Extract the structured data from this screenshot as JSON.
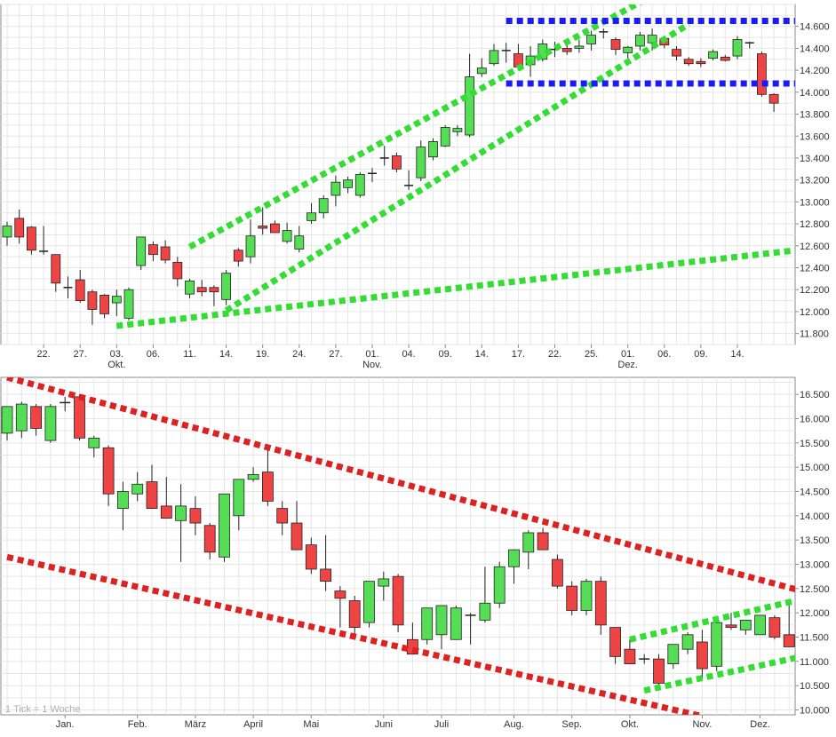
{
  "chart_data": [
    {
      "type": "candlestick",
      "timeframe": "daily",
      "ylim": [
        11700,
        14800
      ],
      "y_ticks": [
        11800,
        12000,
        12200,
        12400,
        12600,
        12800,
        13000,
        13200,
        13400,
        13600,
        13800,
        14000,
        14200,
        14400,
        14600
      ],
      "y_tick_labels": [
        "11.800",
        "12.000",
        "12.200",
        "12.400",
        "12.600",
        "12.800",
        "13.000",
        "13.200",
        "13.400",
        "13.600",
        "13.800",
        "14.000",
        "14.200",
        "14.400",
        "14.600"
      ],
      "x_tick_labels": [
        {
          "index": 3,
          "label": "22."
        },
        {
          "index": 6,
          "label": "27."
        },
        {
          "index": 9,
          "label": "03.",
          "sub": "Okt."
        },
        {
          "index": 12,
          "label": "06."
        },
        {
          "index": 15,
          "label": "11."
        },
        {
          "index": 18,
          "label": "14."
        },
        {
          "index": 21,
          "label": "19."
        },
        {
          "index": 24,
          "label": "24."
        },
        {
          "index": 27,
          "label": "27."
        },
        {
          "index": 30,
          "label": "01.",
          "sub": "Nov."
        },
        {
          "index": 33,
          "label": "04."
        },
        {
          "index": 36,
          "label": "09."
        },
        {
          "index": 39,
          "label": "14."
        },
        {
          "index": 42,
          "label": "17."
        },
        {
          "index": 45,
          "label": "22."
        },
        {
          "index": 48,
          "label": "25."
        },
        {
          "index": 51,
          "label": "01.",
          "sub": "Dez."
        },
        {
          "index": 54,
          "label": "06."
        },
        {
          "index": 57,
          "label": "09."
        },
        {
          "index": 60,
          "label": "14."
        }
      ],
      "candles": [
        {
          "o": 12680,
          "h": 12820,
          "l": 12600,
          "c": 12780
        },
        {
          "o": 12850,
          "h": 12930,
          "l": 12620,
          "c": 12680
        },
        {
          "o": 12770,
          "h": 12780,
          "l": 12520,
          "c": 12560
        },
        {
          "o": 12550,
          "h": 12780,
          "l": 12520,
          "c": 12540
        },
        {
          "o": 12520,
          "h": 12520,
          "l": 12180,
          "c": 12260
        },
        {
          "o": 12220,
          "h": 12320,
          "l": 12120,
          "c": 12220
        },
        {
          "o": 12290,
          "h": 12380,
          "l": 12080,
          "c": 12100
        },
        {
          "o": 12180,
          "h": 12200,
          "l": 11880,
          "c": 12020
        },
        {
          "o": 12150,
          "h": 12160,
          "l": 11940,
          "c": 11980
        },
        {
          "o": 12080,
          "h": 12200,
          "l": 11960,
          "c": 12140
        },
        {
          "o": 11940,
          "h": 12220,
          "l": 11920,
          "c": 12200
        },
        {
          "o": 12420,
          "h": 12680,
          "l": 12380,
          "c": 12680
        },
        {
          "o": 12610,
          "h": 12640,
          "l": 12460,
          "c": 12520
        },
        {
          "o": 12590,
          "h": 12650,
          "l": 12440,
          "c": 12470
        },
        {
          "o": 12450,
          "h": 12500,
          "l": 12230,
          "c": 12300
        },
        {
          "o": 12160,
          "h": 12300,
          "l": 12120,
          "c": 12280
        },
        {
          "o": 12220,
          "h": 12290,
          "l": 12140,
          "c": 12180
        },
        {
          "o": 12220,
          "h": 12240,
          "l": 12050,
          "c": 12180
        },
        {
          "o": 12110,
          "h": 12380,
          "l": 12060,
          "c": 12350
        },
        {
          "o": 12560,
          "h": 12580,
          "l": 12410,
          "c": 12460
        },
        {
          "o": 12500,
          "h": 12840,
          "l": 12440,
          "c": 12690
        },
        {
          "o": 12780,
          "h": 12950,
          "l": 12700,
          "c": 12760
        },
        {
          "o": 12800,
          "h": 12830,
          "l": 12720,
          "c": 12720
        },
        {
          "o": 12640,
          "h": 12810,
          "l": 12620,
          "c": 12740
        },
        {
          "o": 12570,
          "h": 12780,
          "l": 12540,
          "c": 12690
        },
        {
          "o": 12830,
          "h": 12990,
          "l": 12800,
          "c": 12900
        },
        {
          "o": 12900,
          "h": 13060,
          "l": 12850,
          "c": 13030
        },
        {
          "o": 13060,
          "h": 13240,
          "l": 12960,
          "c": 13180
        },
        {
          "o": 13130,
          "h": 13230,
          "l": 13080,
          "c": 13200
        },
        {
          "o": 13060,
          "h": 13270,
          "l": 13040,
          "c": 13250
        },
        {
          "o": 13260,
          "h": 13310,
          "l": 13180,
          "c": 13260
        },
        {
          "o": 13400,
          "h": 13510,
          "l": 13330,
          "c": 13390
        },
        {
          "o": 13420,
          "h": 13450,
          "l": 13270,
          "c": 13300
        },
        {
          "o": 13150,
          "h": 13290,
          "l": 13110,
          "c": 13140
        },
        {
          "o": 13220,
          "h": 13560,
          "l": 13190,
          "c": 13500
        },
        {
          "o": 13410,
          "h": 13580,
          "l": 13380,
          "c": 13550
        },
        {
          "o": 13510,
          "h": 13700,
          "l": 13500,
          "c": 13680
        },
        {
          "o": 13640,
          "h": 13700,
          "l": 13600,
          "c": 13670
        },
        {
          "o": 13610,
          "h": 14350,
          "l": 13590,
          "c": 14140
        },
        {
          "o": 14170,
          "h": 14310,
          "l": 14140,
          "c": 14220
        },
        {
          "o": 14260,
          "h": 14440,
          "l": 14240,
          "c": 14380
        },
        {
          "o": 14380,
          "h": 14450,
          "l": 14270,
          "c": 14380
        },
        {
          "o": 14350,
          "h": 14440,
          "l": 14200,
          "c": 14230
        },
        {
          "o": 14250,
          "h": 14420,
          "l": 14140,
          "c": 14330
        },
        {
          "o": 14300,
          "h": 14480,
          "l": 14280,
          "c": 14440
        },
        {
          "o": 14380,
          "h": 14460,
          "l": 14320,
          "c": 14390
        },
        {
          "o": 14400,
          "h": 14440,
          "l": 14340,
          "c": 14370
        },
        {
          "o": 14400,
          "h": 14480,
          "l": 14360,
          "c": 14420
        },
        {
          "o": 14440,
          "h": 14560,
          "l": 14380,
          "c": 14520
        },
        {
          "o": 14540,
          "h": 14580,
          "l": 14490,
          "c": 14550
        },
        {
          "o": 14480,
          "h": 14500,
          "l": 14340,
          "c": 14390
        },
        {
          "o": 14360,
          "h": 14420,
          "l": 14310,
          "c": 14410
        },
        {
          "o": 14420,
          "h": 14550,
          "l": 14380,
          "c": 14520
        },
        {
          "o": 14450,
          "h": 14580,
          "l": 14380,
          "c": 14520
        },
        {
          "o": 14490,
          "h": 14510,
          "l": 14400,
          "c": 14430
        },
        {
          "o": 14390,
          "h": 14420,
          "l": 14290,
          "c": 14330
        },
        {
          "o": 14300,
          "h": 14320,
          "l": 14240,
          "c": 14260
        },
        {
          "o": 14280,
          "h": 14310,
          "l": 14230,
          "c": 14260
        },
        {
          "o": 14310,
          "h": 14390,
          "l": 14290,
          "c": 14370
        },
        {
          "o": 14320,
          "h": 14340,
          "l": 14280,
          "c": 14290
        },
        {
          "o": 14330,
          "h": 14510,
          "l": 14300,
          "c": 14480
        },
        {
          "o": 14440,
          "h": 14460,
          "l": 14400,
          "c": 14450
        },
        {
          "o": 14350,
          "h": 14370,
          "l": 13960,
          "c": 13980
        },
        {
          "o": 13980,
          "h": 13990,
          "l": 13820,
          "c": 13900
        }
      ],
      "trendlines": [
        {
          "color": "#33dd33",
          "from": {
            "index": 9,
            "y": 11870
          },
          "to": {
            "index": 73,
            "y": 12660
          }
        },
        {
          "color": "#33dd33",
          "from": {
            "index": 18,
            "y": 12010
          },
          "to": {
            "index": 56,
            "y": 14620
          }
        },
        {
          "color": "#33dd33",
          "from": {
            "index": 15,
            "y": 12590
          },
          "to": {
            "index": 53,
            "y": 14880
          }
        },
        {
          "color": "#1a1aff",
          "from": {
            "index": 41,
            "y": 14650
          },
          "to": {
            "index": 71,
            "y": 14650
          }
        },
        {
          "color": "#1a1aff",
          "from": {
            "index": 41,
            "y": 14080
          },
          "to": {
            "index": 71,
            "y": 14080
          }
        }
      ]
    },
    {
      "type": "candlestick",
      "timeframe": "weekly",
      "note": "1 Tick = 1 Woche",
      "ylim": [
        9900,
        16850
      ],
      "y_ticks": [
        10000,
        10500,
        11000,
        11500,
        12000,
        12500,
        13000,
        13500,
        14000,
        14500,
        15000,
        15500,
        16000,
        16500
      ],
      "y_tick_labels": [
        "10.000",
        "10.500",
        "11.000",
        "11.500",
        "12.000",
        "12.500",
        "13.000",
        "13.500",
        "14.000",
        "14.500",
        "15.000",
        "15.500",
        "16.000",
        "16.500"
      ],
      "x_tick_labels": [
        {
          "index": 4,
          "label": "Jan."
        },
        {
          "index": 9,
          "label": "Feb."
        },
        {
          "index": 13,
          "label": "März"
        },
        {
          "index": 17,
          "label": "April"
        },
        {
          "index": 21,
          "label": "Mai"
        },
        {
          "index": 26,
          "label": "Juni"
        },
        {
          "index": 30,
          "label": "Juli"
        },
        {
          "index": 35,
          "label": "Aug."
        },
        {
          "index": 39,
          "label": "Sep."
        },
        {
          "index": 43,
          "label": "Okt."
        },
        {
          "index": 48,
          "label": "Nov."
        },
        {
          "index": 52,
          "label": "Dez."
        }
      ],
      "candles": [
        {
          "o": 15700,
          "h": 16250,
          "l": 15550,
          "c": 16250
        },
        {
          "o": 15750,
          "h": 16350,
          "l": 15600,
          "c": 16300
        },
        {
          "o": 16250,
          "h": 16300,
          "l": 15650,
          "c": 15800
        },
        {
          "o": 15550,
          "h": 16300,
          "l": 15500,
          "c": 16250
        },
        {
          "o": 16330,
          "h": 16450,
          "l": 16150,
          "c": 16330
        },
        {
          "o": 16450,
          "h": 16500,
          "l": 15550,
          "c": 15600
        },
        {
          "o": 15400,
          "h": 15650,
          "l": 15200,
          "c": 15600
        },
        {
          "o": 15400,
          "h": 15450,
          "l": 14200,
          "c": 14450
        },
        {
          "o": 14150,
          "h": 14700,
          "l": 13700,
          "c": 14500
        },
        {
          "o": 14450,
          "h": 14900,
          "l": 14300,
          "c": 14650
        },
        {
          "o": 14700,
          "h": 15050,
          "l": 14200,
          "c": 14150
        },
        {
          "o": 14200,
          "h": 14800,
          "l": 13950,
          "c": 13950
        },
        {
          "o": 13900,
          "h": 14650,
          "l": 13050,
          "c": 14200
        },
        {
          "o": 14150,
          "h": 14400,
          "l": 13600,
          "c": 13850
        },
        {
          "o": 13800,
          "h": 13850,
          "l": 13100,
          "c": 13250
        },
        {
          "o": 13150,
          "h": 14450,
          "l": 13050,
          "c": 14450
        },
        {
          "o": 14000,
          "h": 14750,
          "l": 13700,
          "c": 14750
        },
        {
          "o": 14750,
          "h": 15000,
          "l": 14700,
          "c": 14850
        },
        {
          "o": 14900,
          "h": 15350,
          "l": 14200,
          "c": 14300
        },
        {
          "o": 14150,
          "h": 14300,
          "l": 13600,
          "c": 13850
        },
        {
          "o": 13850,
          "h": 14300,
          "l": 13300,
          "c": 13300
        },
        {
          "o": 13400,
          "h": 13550,
          "l": 12800,
          "c": 12900
        },
        {
          "o": 12900,
          "h": 13600,
          "l": 12450,
          "c": 12650
        },
        {
          "o": 12450,
          "h": 12550,
          "l": 11700,
          "c": 12300
        },
        {
          "o": 12250,
          "h": 12350,
          "l": 11450,
          "c": 11700
        },
        {
          "o": 11800,
          "h": 12650,
          "l": 11700,
          "c": 12650
        },
        {
          "o": 12550,
          "h": 12850,
          "l": 12250,
          "c": 12700
        },
        {
          "o": 12750,
          "h": 12800,
          "l": 11600,
          "c": 11750
        },
        {
          "o": 11450,
          "h": 11800,
          "l": 11150,
          "c": 11150
        },
        {
          "o": 11450,
          "h": 12100,
          "l": 11350,
          "c": 12100
        },
        {
          "o": 11550,
          "h": 12150,
          "l": 11250,
          "c": 12150
        },
        {
          "o": 11450,
          "h": 12150,
          "l": 11450,
          "c": 12100
        },
        {
          "o": 11950,
          "h": 12000,
          "l": 11350,
          "c": 11950
        },
        {
          "o": 11850,
          "h": 12950,
          "l": 11800,
          "c": 12200
        },
        {
          "o": 12200,
          "h": 13050,
          "l": 12100,
          "c": 12950
        },
        {
          "o": 12950,
          "h": 13300,
          "l": 12600,
          "c": 13300
        },
        {
          "o": 13250,
          "h": 13700,
          "l": 12900,
          "c": 13650
        },
        {
          "o": 13650,
          "h": 13750,
          "l": 13350,
          "c": 13300
        },
        {
          "o": 13100,
          "h": 13200,
          "l": 12500,
          "c": 12550
        },
        {
          "o": 12550,
          "h": 12650,
          "l": 11950,
          "c": 12050
        },
        {
          "o": 12050,
          "h": 12700,
          "l": 11950,
          "c": 12650
        },
        {
          "o": 12650,
          "h": 12750,
          "l": 11550,
          "c": 11750
        },
        {
          "o": 11700,
          "h": 11700,
          "l": 10950,
          "c": 11100
        },
        {
          "o": 11250,
          "h": 11450,
          "l": 10950,
          "c": 10950
        },
        {
          "o": 11050,
          "h": 11150,
          "l": 10950,
          "c": 11050
        },
        {
          "o": 11050,
          "h": 11150,
          "l": 10400,
          "c": 10550
        },
        {
          "o": 10950,
          "h": 11350,
          "l": 10850,
          "c": 11350
        },
        {
          "o": 11250,
          "h": 11600,
          "l": 11150,
          "c": 11550
        },
        {
          "o": 11400,
          "h": 11650,
          "l": 10650,
          "c": 10850
        },
        {
          "o": 10900,
          "h": 11850,
          "l": 10800,
          "c": 11800
        },
        {
          "o": 11750,
          "h": 12000,
          "l": 11650,
          "c": 11700
        },
        {
          "o": 11650,
          "h": 11800,
          "l": 11550,
          "c": 11850
        },
        {
          "o": 11550,
          "h": 11950,
          "l": 11550,
          "c": 11950
        },
        {
          "o": 11900,
          "h": 11950,
          "l": 11450,
          "c": 11500
        },
        {
          "o": 11550,
          "h": 12200,
          "l": 11300,
          "c": 11300
        }
      ],
      "trendlines": [
        {
          "color": "#dd2222",
          "from": {
            "index": 0,
            "y": 16850
          },
          "to": {
            "index": 58,
            "y": 12200
          }
        },
        {
          "color": "#dd2222",
          "from": {
            "index": 0,
            "y": 13150
          },
          "to": {
            "index": 48,
            "y": 9870
          }
        },
        {
          "color": "#33dd33",
          "from": {
            "index": 43,
            "y": 11450
          },
          "to": {
            "index": 58,
            "y": 12500
          }
        },
        {
          "color": "#33dd33",
          "from": {
            "index": 44,
            "y": 10400
          },
          "to": {
            "index": 58,
            "y": 11300
          }
        }
      ]
    }
  ],
  "colors": {
    "up": "#55dd55",
    "down": "#ee4444",
    "grid": "#dddddd",
    "axis": "#888888"
  }
}
